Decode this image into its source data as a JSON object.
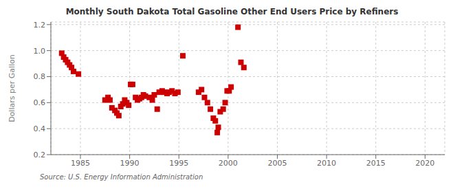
{
  "chart_data": {
    "type": "scatter",
    "title": "Monthly South Dakota Total Gasoline Other End Users Price by Refiners",
    "ylabel": "Dollars per Gallon",
    "annotations": [
      "Source: U.S. Energy Information Administration"
    ],
    "color": "#cc0000",
    "marker": "square",
    "grid": true,
    "xlim": [
      1982,
      2022
    ],
    "ylim": [
      0.2,
      1.22
    ],
    "xticks": [
      1985,
      1990,
      1995,
      2000,
      2005,
      2010,
      2015,
      2020
    ],
    "yticks": [
      0.2,
      0.4,
      0.6,
      0.8,
      {
        "value": 1.0,
        "label": "1.0"
      },
      1.2
    ],
    "x": [
      1983.1,
      1983.3,
      1983.5,
      1983.7,
      1983.9,
      1984.1,
      1984.3,
      1984.8,
      1987.5,
      1987.8,
      1988.0,
      1988.2,
      1988.5,
      1988.7,
      1988.9,
      1989.1,
      1989.3,
      1989.5,
      1989.7,
      1989.9,
      1990.1,
      1990.3,
      1990.6,
      1990.8,
      1991.0,
      1991.2,
      1991.4,
      1991.6,
      1992.0,
      1992.3,
      1992.5,
      1992.8,
      1993.0,
      1993.3,
      1993.5,
      1993.8,
      1994.0,
      1994.3,
      1994.6,
      1994.9,
      1995.4,
      1997.0,
      1997.3,
      1997.6,
      1997.9,
      1998.2,
      1998.5,
      1998.7,
      1998.9,
      1999.0,
      1999.2,
      1999.5,
      1999.7,
      1999.9,
      2000.1,
      2000.3,
      2001.0,
      2001.3,
      2001.6
    ],
    "values": [
      0.98,
      0.95,
      0.93,
      0.91,
      0.89,
      0.87,
      0.84,
      0.82,
      0.62,
      0.64,
      0.62,
      0.56,
      0.54,
      0.52,
      0.5,
      0.57,
      0.59,
      0.62,
      0.6,
      0.58,
      0.74,
      0.74,
      0.64,
      0.62,
      0.63,
      0.64,
      0.66,
      0.65,
      0.64,
      0.62,
      0.66,
      0.55,
      0.68,
      0.69,
      0.68,
      0.67,
      0.68,
      0.69,
      0.67,
      0.68,
      0.96,
      0.68,
      0.7,
      0.64,
      0.6,
      0.55,
      0.48,
      0.46,
      0.37,
      0.41,
      0.53,
      0.55,
      0.6,
      0.69,
      0.69,
      0.72,
      1.18,
      0.91,
      0.87
    ]
  }
}
